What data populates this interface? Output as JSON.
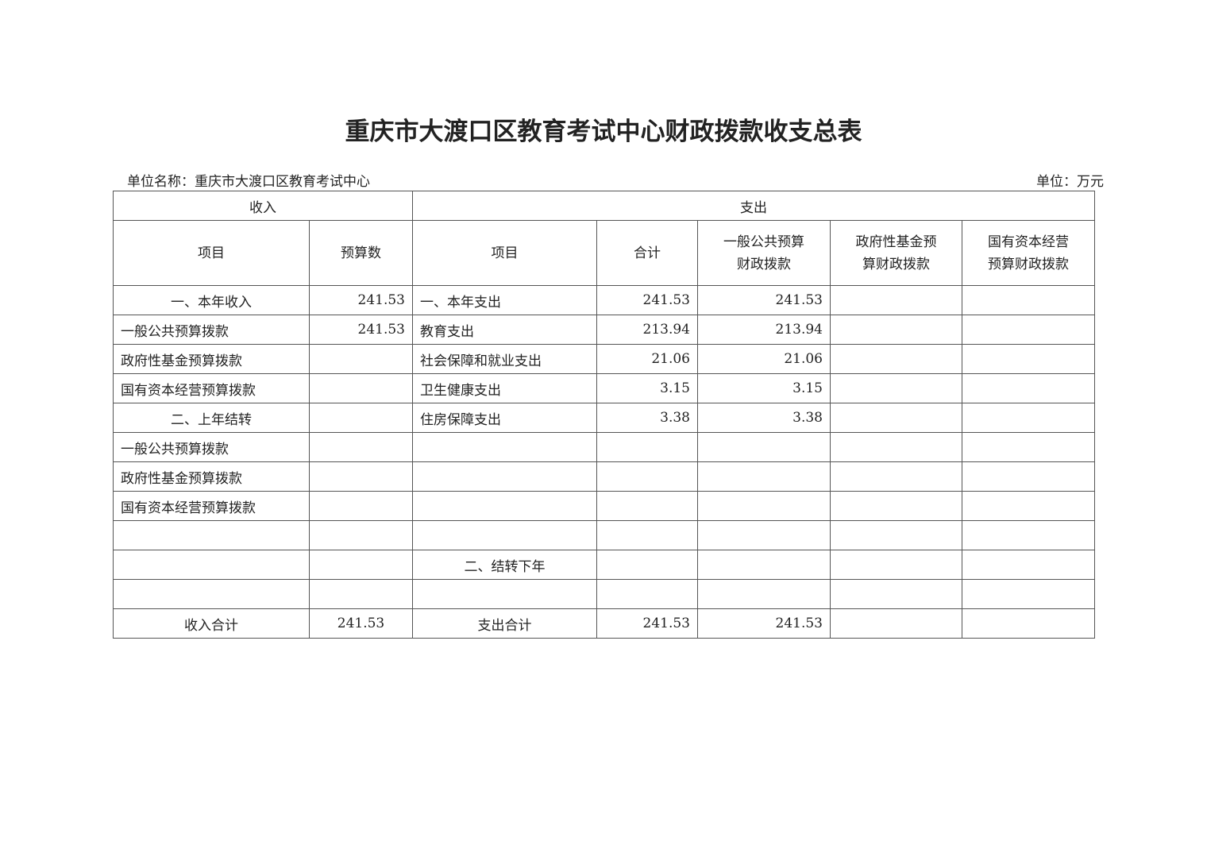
{
  "title": "重庆市大渡口区教育考试中心财政拨款收支总表",
  "unit_name": "单位名称：重庆市大渡口区教育考试中心",
  "unit": "单位：万元",
  "group_headers": {
    "income": "收入",
    "expense": "支出"
  },
  "column_headers": [
    "项目",
    "预算数",
    "项目",
    "合计",
    "一般公共预算财政拨款",
    "政府性基金预算财政拨款",
    "国有资本经营预算财政拨款"
  ],
  "rows": [
    [
      "一、本年收入",
      "241.53",
      "一、本年支出",
      "241.53",
      "241.53",
      "",
      ""
    ],
    [
      "一般公共预算拨款",
      "241.53",
      "教育支出",
      "213.94",
      "213.94",
      "",
      ""
    ],
    [
      "政府性基金预算拨款",
      "",
      "社会保障和就业支出",
      "21.06",
      "21.06",
      "",
      ""
    ],
    [
      "国有资本经营预算拨款",
      "",
      "卫生健康支出",
      "3.15",
      "3.15",
      "",
      ""
    ],
    [
      "二、上年结转",
      "",
      "住房保障支出",
      "3.38",
      "3.38",
      "",
      ""
    ],
    [
      "一般公共预算拨款",
      "",
      "",
      "",
      "",
      "",
      ""
    ],
    [
      "政府性基金预算拨款",
      "",
      "",
      "",
      "",
      "",
      ""
    ],
    [
      "国有资本经营预算拨款",
      "",
      "",
      "",
      "",
      "",
      ""
    ],
    [
      "",
      "",
      "",
      "",
      "",
      "",
      ""
    ],
    [
      "",
      "",
      "二、结转下年",
      "",
      "",
      "",
      ""
    ],
    [
      "",
      "",
      "",
      "",
      "",
      "",
      ""
    ],
    [
      "收入合计",
      "241.53",
      "支出合计",
      "241.53",
      "241.53",
      "",
      ""
    ]
  ]
}
